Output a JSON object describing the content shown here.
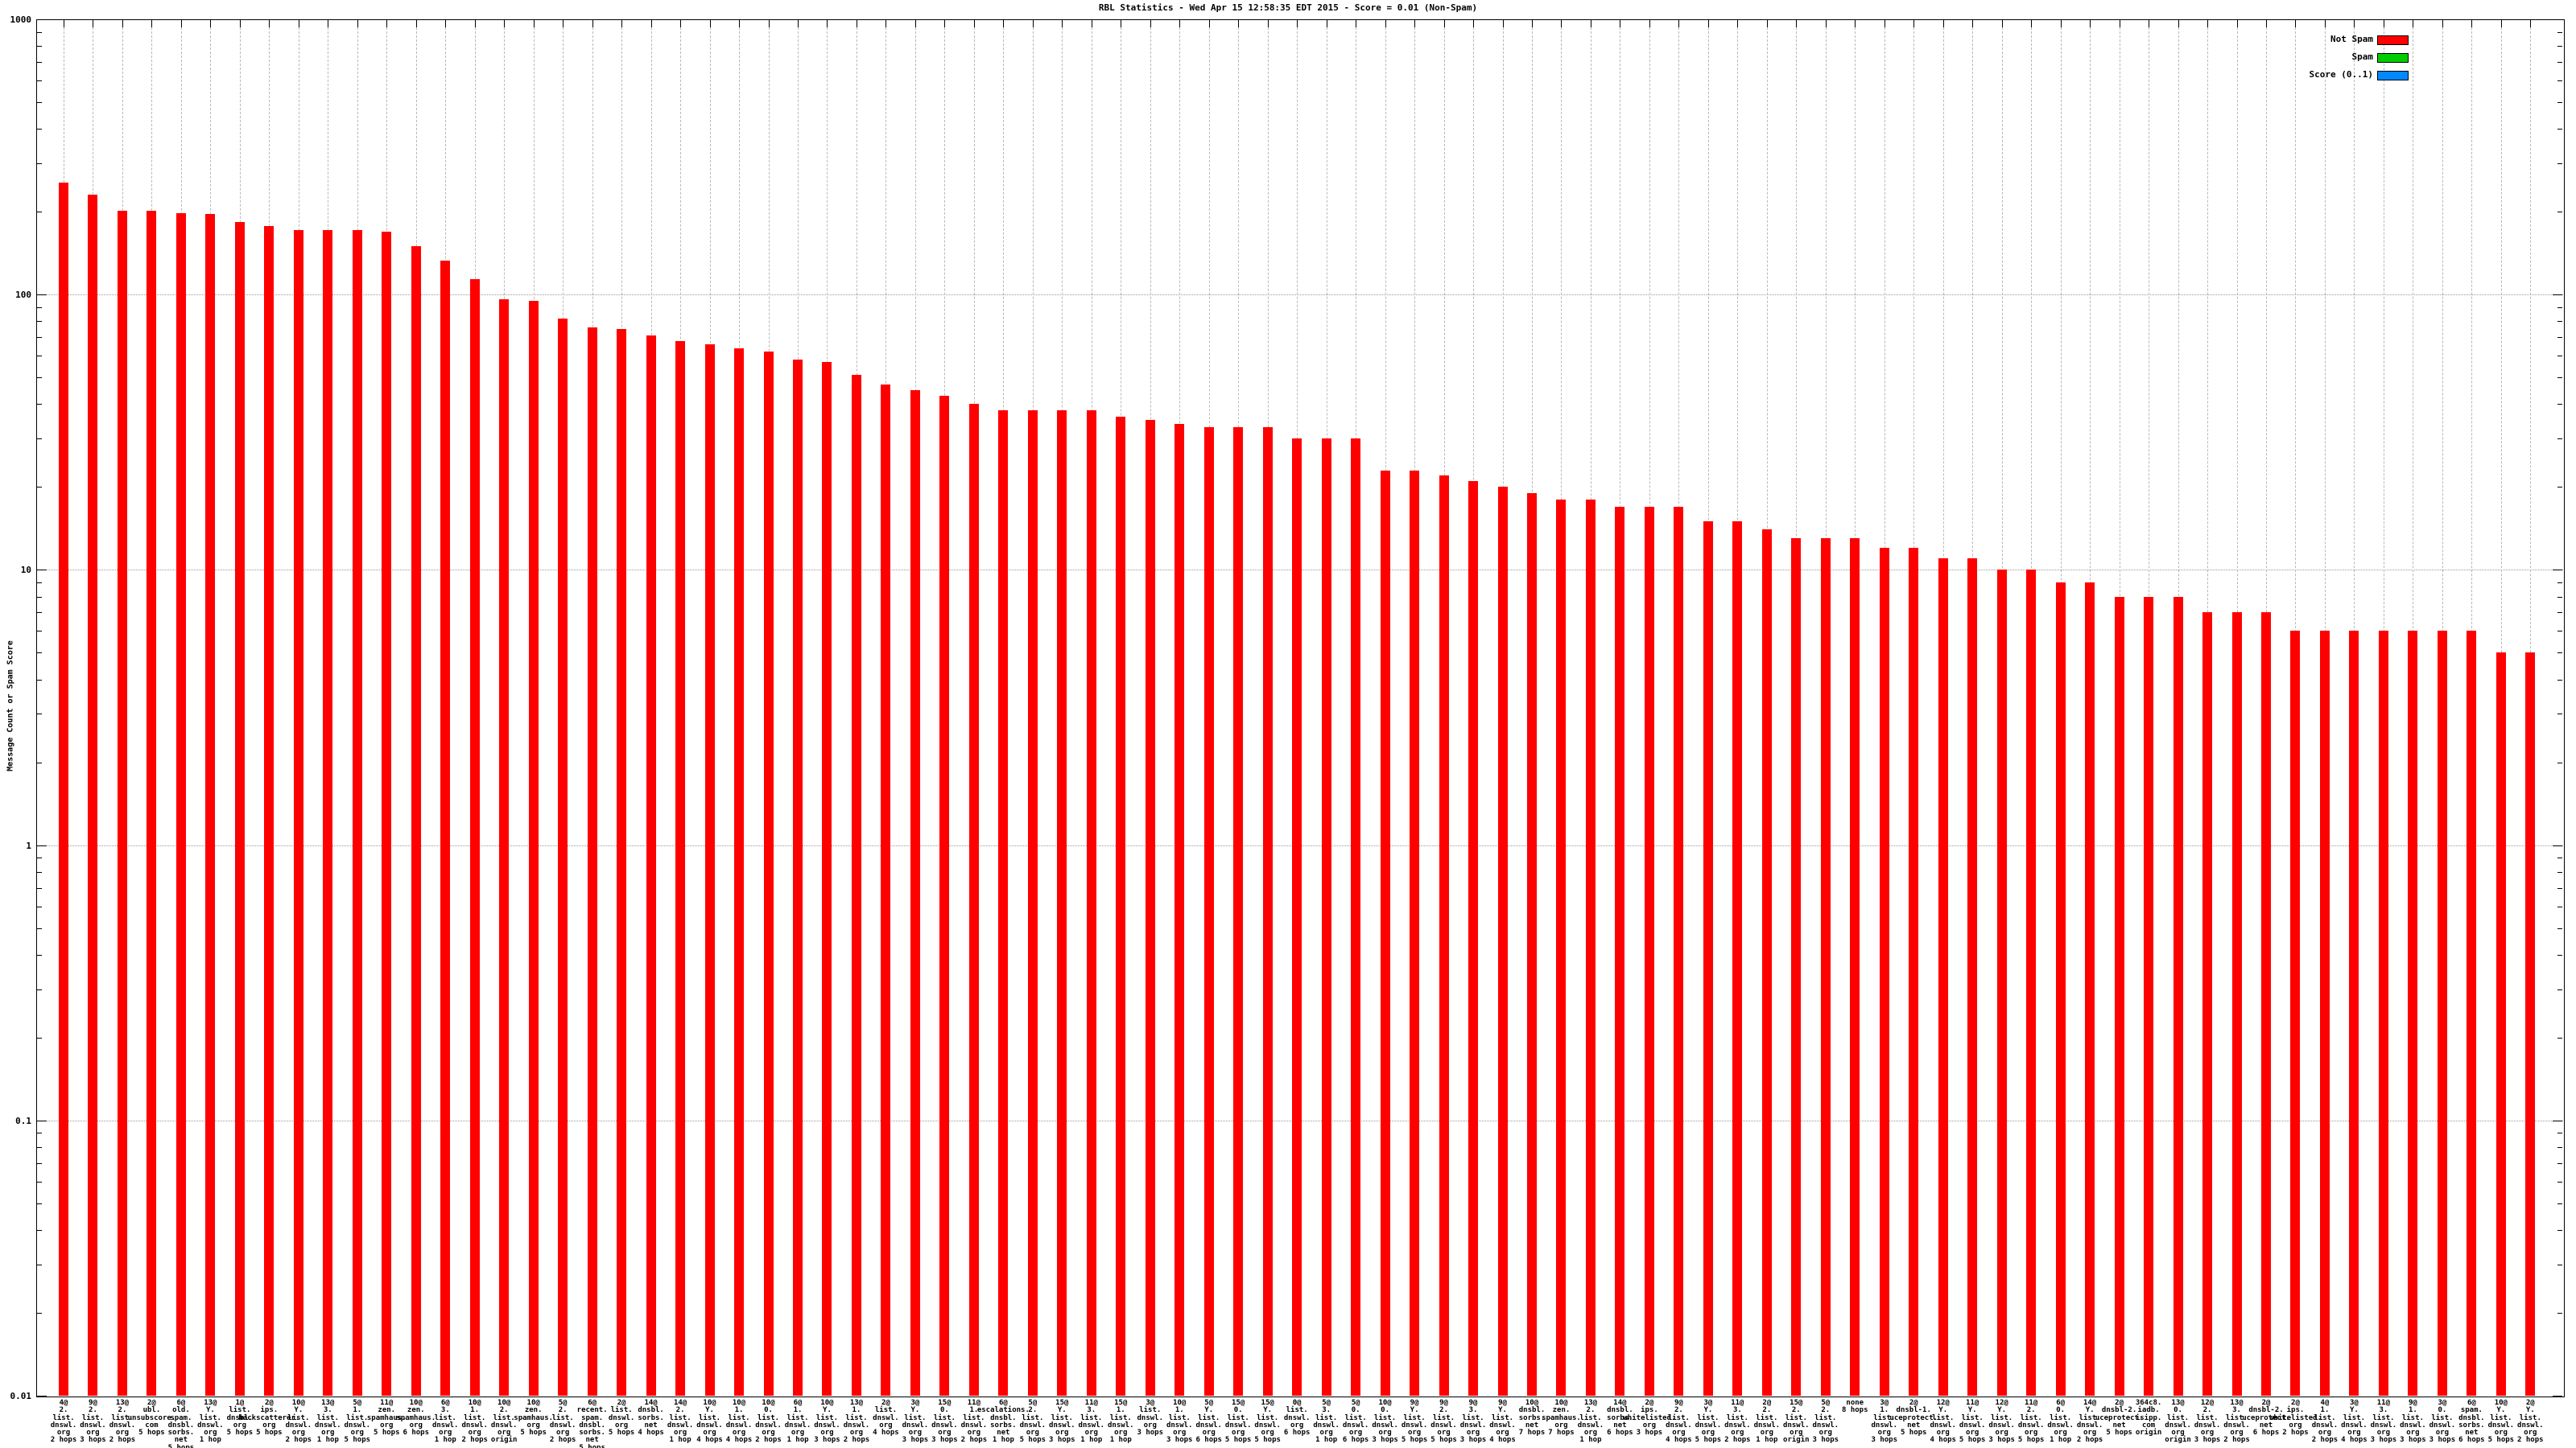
{
  "title": "RBL Statistics - Wed Apr 15 12:58:35 EDT 2015 - Score = 0.01 (Non-Spam)",
  "y_axis": {
    "label": "Message Count or Spam Score",
    "ticks": [
      {
        "label": "1000",
        "value": 1000
      },
      {
        "label": "100",
        "value": 100
      },
      {
        "label": "10",
        "value": 10
      },
      {
        "label": "1",
        "value": 1
      },
      {
        "label": "0.1",
        "value": 0.1
      },
      {
        "label": "0.01",
        "value": 0.01
      }
    ]
  },
  "legend": [
    {
      "label": "Not Spam",
      "color": "#ff0000"
    },
    {
      "label": "Spam",
      "color": "#00cc00"
    },
    {
      "label": "Score (0..1)",
      "color": "#0088ff"
    }
  ],
  "chart_data": {
    "type": "bar",
    "yscale": "log",
    "ylim": [
      0.01,
      1000
    ],
    "grid": true,
    "legend_position": "top-right-inside",
    "title": "RBL Statistics - Wed Apr 15 12:58:35 EDT 2015 - Score = 0.01 (Non-Spam)",
    "ylabel": "Message Count or Spam Score",
    "bar_color": "#ff0000",
    "bars": [
      {
        "label": "4@\n2.\nlist.\ndnswl.\norg\n2 hops",
        "value": 255
      },
      {
        "label": "9@\n2.\nlist.\ndnswl.\norg\n3 hops",
        "value": 230
      },
      {
        "label": "13@\n2.\nlist.\ndnswl.\norg\n2 hops",
        "value": 202
      },
      {
        "label": "2@\nubl.\nunsubscore.\ncom\n5 hops",
        "value": 202
      },
      {
        "label": "6@\nold.\nspam.\ndnsbl.\nsorbs.\nnet\n5 hops",
        "value": 197
      },
      {
        "label": "13@\nY.\nlist.\ndnswl.\norg\n1 hop",
        "value": 196
      },
      {
        "label": "1@\nlist.\ndnsbl.\norg\n5 hops",
        "value": 183
      },
      {
        "label": "2@\nips.\nbackscatterer.\norg\n5 hops",
        "value": 178
      },
      {
        "label": "10@\nY.\nlist.\ndnswl.\norg\n2 hops",
        "value": 171
      },
      {
        "label": "13@\n3.\nlist.\ndnswl.\norg\n1 hop",
        "value": 171
      },
      {
        "label": "5@\n1.\nlist.\ndnswl.\norg\n5 hops",
        "value": 171
      },
      {
        "label": "11@\nzen.\nspamhaus.\norg\n5 hops",
        "value": 169
      },
      {
        "label": "10@\nzen.\nspamhaus.\norg\n6 hops",
        "value": 150
      },
      {
        "label": "6@\n3.\nlist.\ndnswl.\norg\n1 hop",
        "value": 133
      },
      {
        "label": "10@\n1.\nlist.\ndnswl.\norg\n2 hops",
        "value": 114
      },
      {
        "label": "10@\n2.\nlist.\ndnswl.\norg\norigin",
        "value": 96
      },
      {
        "label": "10@\nzen.\nspamhaus.\norg\n5 hops",
        "value": 95
      },
      {
        "label": "5@\n2.\nlist.\ndnswl.\norg\n2 hops",
        "value": 82
      },
      {
        "label": "6@\nrecent.\nspam.\ndnsbl.\nsorbs.\nnet\n5 hops",
        "value": 76
      },
      {
        "label": "2@\nlist.\ndnswl.\norg\n5 hops",
        "value": 75
      },
      {
        "label": "14@\ndnsbl.\nsorbs.\nnet\n4 hops",
        "value": 71
      },
      {
        "label": "14@\n2.\nlist.\ndnswl.\norg\n1 hop",
        "value": 68
      },
      {
        "label": "10@\nY.\nlist.\ndnswl.\norg\n4 hops",
        "value": 66
      },
      {
        "label": "10@\n1.\nlist.\ndnswl.\norg\n4 hops",
        "value": 64
      },
      {
        "label": "10@\n0.\nlist.\ndnswl.\norg\n2 hops",
        "value": 62
      },
      {
        "label": "6@\n1.\nlist.\ndnswl.\norg\n1 hop",
        "value": 58
      },
      {
        "label": "10@\nY.\nlist.\ndnswl.\norg\n3 hops",
        "value": 57
      },
      {
        "label": "13@\n1.\nlist.\ndnswl.\norg\n2 hops",
        "value": 51
      },
      {
        "label": "2@\nlist.\ndnswl.\norg\n4 hops",
        "value": 47
      },
      {
        "label": "3@\nY.\nlist.\ndnswl.\norg\n3 hops",
        "value": 45
      },
      {
        "label": "15@\n0.\nlist.\ndnswl.\norg\n3 hops",
        "value": 43
      },
      {
        "label": "11@\n1.\nlist.\ndnswl.\norg\n2 hops",
        "value": 40
      },
      {
        "label": "6@\nescalations.\ndnsbl.\nsorbs.\nnet\n1 hop",
        "value": 38
      },
      {
        "label": "5@\n2.\nlist.\ndnswl.\norg\n5 hops",
        "value": 38
      },
      {
        "label": "15@\nY.\nlist.\ndnswl.\norg\n3 hops",
        "value": 38
      },
      {
        "label": "11@\n3.\nlist.\ndnswl.\norg\n1 hop",
        "value": 38
      },
      {
        "label": "15@\n1.\nlist.\ndnswl.\norg\n1 hop",
        "value": 36
      },
      {
        "label": "3@\nlist.\ndnswl.\norg\n3 hops",
        "value": 35
      },
      {
        "label": "10@\n1.\nlist.\ndnswl.\norg\n3 hops",
        "value": 34
      },
      {
        "label": "5@\nY.\nlist.\ndnswl.\norg\n6 hops",
        "value": 33
      },
      {
        "label": "15@\n0.\nlist.\ndnswl.\norg\n5 hops",
        "value": 33
      },
      {
        "label": "15@\nY.\nlist.\ndnswl.\norg\n5 hops",
        "value": 33
      },
      {
        "label": "0@\nlist.\ndnswl.\norg\n6 hops",
        "value": 30
      },
      {
        "label": "5@\n3.\nlist.\ndnswl.\norg\n1 hop",
        "value": 30
      },
      {
        "label": "5@\n0.\nlist.\ndnswl.\norg\n6 hops",
        "value": 30
      },
      {
        "label": "10@\n0.\nlist.\ndnswl.\norg\n3 hops",
        "value": 23
      },
      {
        "label": "9@\nY.\nlist.\ndnswl.\norg\n5 hops",
        "value": 23
      },
      {
        "label": "9@\n2.\nlist.\ndnswl.\norg\n5 hops",
        "value": 22
      },
      {
        "label": "9@\n3.\nlist.\ndnswl.\norg\n3 hops",
        "value": 21
      },
      {
        "label": "9@\nY.\nlist.\ndnswl.\norg\n4 hops",
        "value": 20
      },
      {
        "label": "10@\ndnsbl.\nsorbs.\nnet\n7 hops",
        "value": 19
      },
      {
        "label": "10@\nzen.\nspamhaus.\norg\n7 hops",
        "value": 18
      },
      {
        "label": "13@\n2.\nlist.\ndnswl.\norg\n1 hop",
        "value": 18
      },
      {
        "label": "14@\ndnsbl.\nsorbs.\nnet\n6 hops",
        "value": 17
      },
      {
        "label": "2@\nips.\nwhitelisted.\norg\n3 hops",
        "value": 17
      },
      {
        "label": "9@\n2.\nlist.\ndnswl.\norg\n4 hops",
        "value": 17
      },
      {
        "label": "3@\nY.\nlist.\ndnswl.\norg\n5 hops",
        "value": 15
      },
      {
        "label": "11@\n3.\nlist.\ndnswl.\norg\n2 hops",
        "value": 15
      },
      {
        "label": "2@\n2.\nlist.\ndnswl.\norg\n1 hop",
        "value": 14
      },
      {
        "label": "15@\n2.\nlist.\ndnswl.\norg\norigin",
        "value": 13
      },
      {
        "label": "5@\n2.\nlist.\ndnswl.\norg\n3 hops",
        "value": 13
      },
      {
        "label": "none\n8 hops",
        "value": 13
      },
      {
        "label": "3@\n1.\nlist.\ndnswl.\norg\n3 hops",
        "value": 12
      },
      {
        "label": "2@\ndnsbl-1.\nuceprotect.\nnet\n5 hops",
        "value": 12
      },
      {
        "label": "12@\nY.\nlist.\ndnswl.\norg\n4 hops",
        "value": 11
      },
      {
        "label": "11@\nY.\nlist.\ndnswl.\norg\n5 hops",
        "value": 11
      },
      {
        "label": "12@\nY.\nlist.\ndnswl.\norg\n3 hops",
        "value": 10
      },
      {
        "label": "11@\n2.\nlist.\ndnswl.\norg\n5 hops",
        "value": 10
      },
      {
        "label": "6@\n0.\nlist.\ndnswl.\norg\n1 hop",
        "value": 9
      },
      {
        "label": "14@\nY.\nlist.\ndnswl.\norg\n2 hops",
        "value": 9
      },
      {
        "label": "2@\ndnsbl-2.\nuceprotect.\nnet\n5 hops",
        "value": 8
      },
      {
        "label": "364c8.\niadb.\nisipp.\ncom\norigin",
        "value": 8
      },
      {
        "label": "13@\n0.\nlist.\ndnswl.\norg\norigin",
        "value": 8
      },
      {
        "label": "12@\n2.\nlist.\ndnswl.\norg\n3 hops",
        "value": 7
      },
      {
        "label": "13@\n3.\nlist.\ndnswl.\norg\n2 hops",
        "value": 7
      },
      {
        "label": "2@\ndnsbl-2.\nuceprotect.\nnet\n6 hops",
        "value": 7
      },
      {
        "label": "2@\nips.\nwhitelisted.\norg\n2 hops",
        "value": 6
      },
      {
        "label": "4@\n1.\nlist.\ndnswl.\norg\n2 hops",
        "value": 6
      },
      {
        "label": "3@\nY.\nlist.\ndnswl.\norg\n4 hops",
        "value": 6
      },
      {
        "label": "11@\n3.\nlist.\ndnswl.\norg\n3 hops",
        "value": 6
      },
      {
        "label": "9@\n1.\nlist.\ndnswl.\norg\n3 hops",
        "value": 6
      },
      {
        "label": "3@\n0.\nlist.\ndnswl.\norg\n3 hops",
        "value": 6
      },
      {
        "label": "6@\nspam.\ndnsbl.\nsorbs.\nnet\n6 hops",
        "value": 6
      },
      {
        "label": "10@\nY.\nlist.\ndnswl.\norg\n5 hops",
        "value": 5
      },
      {
        "label": "2@\nY.\nlist.\ndnswl.\norg\n2 hops",
        "value": 5
      }
    ]
  }
}
